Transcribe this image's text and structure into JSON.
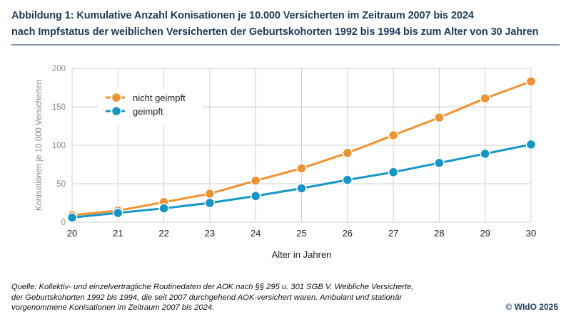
{
  "header": {
    "title_line1": "Abbildung 1: Kumulative Anzahl Konisationen je 10.000 Versicherten im Zeitraum 2007 bis 2024",
    "title_line2": "nach Impfstatus der weiblichen Versicherten der Geburtskohorten 1992 bis 1994 bis zum Alter von 30 Jahren"
  },
  "chart_data": {
    "type": "line",
    "title": "Kumulative Anzahl Konisationen je 10.000 Versicherten im Zeitraum 2007 bis 2024 nach Impfstatus",
    "xlabel": "Alter in Jahren",
    "ylabel": "Konisationen je 10.000 Versicherten",
    "x": [
      20,
      21,
      22,
      23,
      24,
      25,
      26,
      27,
      28,
      29,
      30
    ],
    "x_tick_labels": [
      "20",
      "21",
      "22",
      "23",
      "24",
      "25",
      "26",
      "27",
      "28",
      "29",
      "30"
    ],
    "y_ticks": [
      0,
      50,
      100,
      150,
      200
    ],
    "y_tick_labels": [
      "0",
      "50",
      "100",
      "150",
      "200"
    ],
    "ylim": [
      0,
      200
    ],
    "xlim": [
      20,
      30
    ],
    "grid": true,
    "legend_position": "top-left",
    "series": [
      {
        "name": "nicht geimpft",
        "color": "#f0922e",
        "values": [
          9,
          15,
          26,
          37,
          54,
          70,
          90,
          113,
          136,
          161,
          183
        ]
      },
      {
        "name": "geimpft",
        "color": "#1596c8",
        "values": [
          6,
          12,
          18,
          25,
          34,
          44,
          55,
          65,
          77,
          89,
          101
        ]
      }
    ]
  },
  "footer": {
    "source_lines": [
      "Quelle: Kollektiv- und einzelvertragliche Routinedaten der AOK nach §§ 295 u. 301 SGB V. Weibliche Versicherte,",
      "der Geburtskohorten 1992 bis 1994, die seit 2007 durchgehend AOK-versichert waren. Ambulant und stationär",
      "vorgenommene Konisationen im Zeitraum 2007 bis 2024."
    ],
    "copyright": "© WIdO 2025"
  }
}
